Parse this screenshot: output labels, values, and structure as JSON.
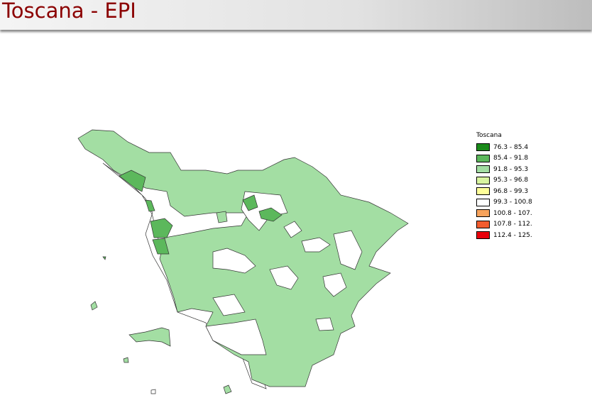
{
  "title": "Toscana - EPI",
  "legend": {
    "title": "Toscana",
    "items": [
      {
        "label": "76.3 - 85.4",
        "color": "#1a8a1a"
      },
      {
        "label": "85.4 - 91.8",
        "color": "#5cb85c"
      },
      {
        "label": "91.8 - 95.3",
        "color": "#a3dea3"
      },
      {
        "label": "95.3 - 96.8",
        "color": "#d9f5a0"
      },
      {
        "label": "96.8 - 99.3",
        "color": "#ffff99"
      },
      {
        "label": "99.3 - 100.8",
        "color": "#ffffff"
      },
      {
        "label": "100.8 - 107.",
        "color": "#f7a35c"
      },
      {
        "label": "107.8 - 112.",
        "color": "#f25c2e"
      },
      {
        "label": "112.4 - 125.",
        "color": "#e8000b"
      }
    ]
  }
}
